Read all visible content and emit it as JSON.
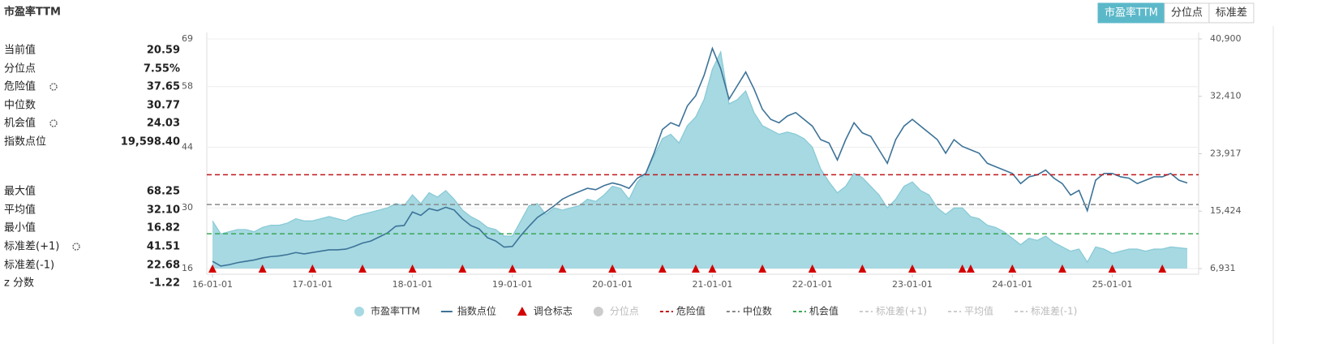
{
  "title": "市盈率TTM",
  "buttons": [
    {
      "label": "市盈率TTM",
      "active": true
    },
    {
      "label": "分位点",
      "active": false
    },
    {
      "label": "标准差",
      "active": false
    }
  ],
  "stats": [
    {
      "label": "当前值",
      "value": 20.59
    },
    {
      "label": "分位点",
      "value": 7.55,
      "value_label": "7.55%"
    },
    {
      "label": "指数点位",
      "value": 19598.4,
      "value_label": "19,598.40"
    },
    {
      "label": "最大值",
      "value": 68.25
    },
    {
      "label": "最小值",
      "value": 16.82
    },
    {
      "label": "z 分数",
      "value": -1.22
    }
  ],
  "chart_data": {
    "type": "combo",
    "x": [
      "16-01-01",
      "16-02-01",
      "16-03-01",
      "16-04-01",
      "16-05-01",
      "16-06-01",
      "16-07-01",
      "16-08-01",
      "16-09-01",
      "16-10-01",
      "16-11-01",
      "16-12-01",
      "17-01-01",
      "17-02-01",
      "17-03-01",
      "17-04-01",
      "17-05-01",
      "17-06-01",
      "17-07-01",
      "17-08-01",
      "17-09-01",
      "17-10-01",
      "17-11-01",
      "17-12-01",
      "18-01-01",
      "18-02-01",
      "18-03-01",
      "18-04-01",
      "18-05-01",
      "18-06-01",
      "18-07-01",
      "18-08-01",
      "18-09-01",
      "18-10-01",
      "18-11-01",
      "18-12-01",
      "19-01-01",
      "19-02-01",
      "19-03-01",
      "19-04-01",
      "19-05-01",
      "19-06-01",
      "19-07-01",
      "19-08-01",
      "19-09-01",
      "19-10-01",
      "19-11-01",
      "19-12-01",
      "20-01-01",
      "20-02-01",
      "20-03-01",
      "20-04-01",
      "20-05-01",
      "20-06-01",
      "20-07-01",
      "20-08-01",
      "20-09-01",
      "20-10-01",
      "20-11-01",
      "20-12-01",
      "21-01-01",
      "21-02-01",
      "21-03-01",
      "21-04-01",
      "21-05-01",
      "21-06-01",
      "21-07-01",
      "21-08-01",
      "21-09-01",
      "21-10-01",
      "21-11-01",
      "21-12-01",
      "22-01-01",
      "22-02-01",
      "22-03-01",
      "22-04-01",
      "22-05-01",
      "22-06-01",
      "22-07-01",
      "22-08-01",
      "22-09-01",
      "22-10-01",
      "22-11-01",
      "22-12-01",
      "23-01-01",
      "23-02-01",
      "23-03-01",
      "23-04-01",
      "23-05-01",
      "23-06-01",
      "23-07-01",
      "23-08-01",
      "23-09-01",
      "23-10-01",
      "23-11-01",
      "23-12-01",
      "24-01-01",
      "24-02-01",
      "24-03-01",
      "24-04-01",
      "24-05-01",
      "24-06-01",
      "24-07-01",
      "24-08-01",
      "24-09-01",
      "24-10-01",
      "24-11-01",
      "24-12-01",
      "25-01-01",
      "25-02-01",
      "25-03-01",
      "25-04-01",
      "25-05-01",
      "25-06-01",
      "25-07-01",
      "25-08-01",
      "25-09-01",
      "25-10-01"
    ],
    "xticks": [
      "16-01-01",
      "17-01-01",
      "18-01-01",
      "19-01-01",
      "20-01-01",
      "21-01-01",
      "22-01-01",
      "23-01-01",
      "24-01-01",
      "25-01-01"
    ],
    "series": [
      {
        "name": "市盈率TTM",
        "style": "area",
        "color": "#a6d9e2",
        "stroke": "#86c9d6",
        "values": [
          27,
          24,
          24.5,
          25,
          25,
          24.5,
          25.5,
          26,
          26,
          26.5,
          27.5,
          27,
          27,
          27.5,
          28,
          27.5,
          27,
          28,
          28.5,
          29,
          29.5,
          30,
          31,
          30.5,
          33,
          31,
          33.5,
          32.5,
          34,
          32,
          29.5,
          28,
          27,
          25.5,
          25,
          23.5,
          23.5,
          27,
          30.5,
          31,
          28.5,
          30,
          29.5,
          30,
          30.5,
          32,
          31.5,
          33,
          35,
          34.5,
          32,
          36,
          38,
          42,
          46,
          47,
          45,
          49,
          51,
          55,
          62,
          66,
          54,
          55,
          57,
          52,
          49,
          48,
          47,
          47.5,
          47,
          46,
          44,
          39,
          36,
          33.5,
          35,
          38,
          37,
          35,
          33,
          30,
          32,
          35,
          36,
          34,
          33,
          30,
          28.5,
          30,
          30,
          28,
          27.5,
          26,
          25.5,
          24.5,
          23,
          21.5,
          23,
          22.5,
          23.5,
          22,
          21,
          20,
          20.5,
          17.5,
          21,
          20.5,
          19.5,
          20,
          20.5,
          20.5,
          20,
          20.5,
          20.5,
          21,
          20.8,
          20.59
        ]
      },
      {
        "name": "指数点位",
        "style": "line",
        "axis": "y2",
        "color": "#3d7398",
        "values": [
          8000,
          7300,
          7500,
          7800,
          8000,
          8200,
          8500,
          8700,
          8800,
          9000,
          9300,
          9100,
          9300,
          9500,
          9700,
          9700,
          9800,
          10200,
          10700,
          11000,
          11600,
          12200,
          13200,
          13300,
          15300,
          14800,
          15800,
          15500,
          16000,
          15600,
          14300,
          13300,
          12800,
          11500,
          11000,
          10100,
          10200,
          11800,
          13200,
          14500,
          15300,
          16200,
          17200,
          17800,
          18300,
          18800,
          18600,
          19200,
          19600,
          19300,
          18800,
          20300,
          21000,
          24000,
          27500,
          28500,
          28000,
          31000,
          32500,
          35500,
          39500,
          36500,
          32000,
          34000,
          36000,
          33500,
          30500,
          29000,
          28500,
          29500,
          30000,
          29000,
          28000,
          26000,
          25500,
          23000,
          26000,
          28500,
          27000,
          26500,
          24500,
          22500,
          26000,
          28000,
          29000,
          28000,
          27000,
          26000,
          24000,
          26000,
          25000,
          24500,
          24000,
          22500,
          22000,
          21500,
          21000,
          19500,
          20500,
          20800,
          21500,
          20300,
          19500,
          17800,
          18500,
          15500,
          20000,
          21000,
          21000,
          20500,
          20300,
          19500,
          20000,
          20500,
          20500,
          21000,
          20000,
          19598.4
        ]
      }
    ],
    "rebalance": {
      "name": "调仓标志",
      "color": "#d40000",
      "dates": [
        "16-01-01",
        "16-07-01",
        "17-01-01",
        "17-07-01",
        "18-01-01",
        "18-07-01",
        "19-01-01",
        "19-07-01",
        "20-01-01",
        "20-07-01",
        "20-11-01",
        "21-01-01",
        "21-07-01",
        "22-01-01",
        "22-07-01",
        "23-01-01",
        "23-07-01",
        "23-08-01",
        "24-01-01",
        "24-07-01",
        "25-01-01",
        "25-07-01"
      ]
    },
    "hidden_series": [
      {
        "name": "分位点",
        "color": "#cccccc",
        "visible": false
      }
    ],
    "reference_lines": [
      {
        "name": "危险值",
        "value": 37.65,
        "color": "#c0161b",
        "visible": true
      },
      {
        "name": "中位数",
        "value": 30.77,
        "color": "#888888",
        "visible": true
      },
      {
        "name": "机会值",
        "value": 24.03,
        "color": "#3aa757",
        "visible": true
      },
      {
        "name": "标准差(+1)",
        "value": 41.51,
        "color": "#cccccc",
        "visible": false
      },
      {
        "name": "平均值",
        "value": 32.1,
        "value_label": "32.10",
        "color": "#cccccc",
        "visible": false
      },
      {
        "name": "标准差(-1)",
        "value": 22.68,
        "color": "#cccccc",
        "visible": false
      }
    ],
    "ylim": [
      16,
      69
    ],
    "yticks": [
      16,
      30,
      44,
      58,
      69
    ],
    "y2lim": [
      6931,
      40900
    ],
    "y2ticks": [
      {
        "value": 6931,
        "label": "6,931"
      },
      {
        "value": 15424,
        "label": "15,424"
      },
      {
        "value": 23917,
        "label": "23,917"
      },
      {
        "value": 32410,
        "label": "32,410"
      },
      {
        "value": 40900,
        "label": "40,900"
      }
    ],
    "grid": true
  }
}
